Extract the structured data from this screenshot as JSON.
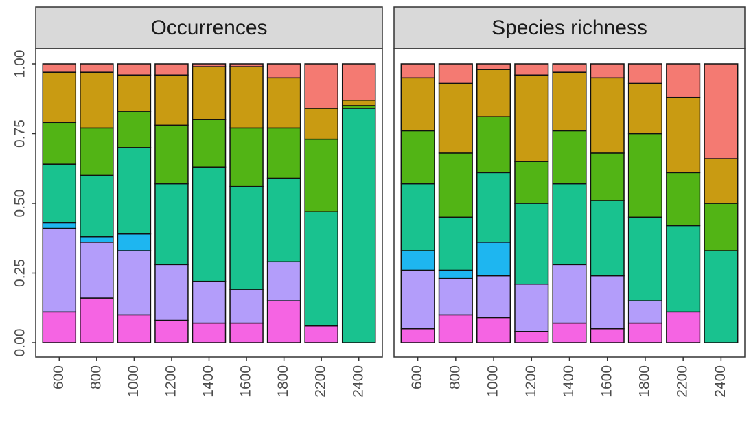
{
  "chart_data": [
    {
      "type": "bar",
      "stacked": true,
      "title": "Occurrences",
      "categories": [
        "600",
        "800",
        "1000",
        "1200",
        "1400",
        "1600",
        "1800",
        "2200",
        "2400"
      ],
      "ylim": [
        0,
        1
      ],
      "yticks": [
        {
          "value": 0,
          "label": "0.00"
        },
        {
          "value": 0.25,
          "label": "0.25"
        },
        {
          "value": 0.5,
          "label": "0.50"
        },
        {
          "value": 0.75,
          "label": "0.75"
        },
        {
          "value": 1,
          "label": "1.00"
        }
      ],
      "series": [
        {
          "color": "#F564E3",
          "values": [
            0.11,
            0.16,
            0.1,
            0.08,
            0.07,
            0.07,
            0.15,
            0.06,
            0
          ]
        },
        {
          "color": "#B39DFA",
          "values": [
            0.3,
            0.2,
            0.23,
            0.2,
            0.15,
            0.12,
            0.14,
            0,
            0
          ]
        },
        {
          "color": "#1EB6F0",
          "values": [
            0.02,
            0.02,
            0.06,
            0,
            0,
            0,
            0,
            0,
            0
          ]
        },
        {
          "color": "#19C28F",
          "values": [
            0.21,
            0.22,
            0.31,
            0.29,
            0.41,
            0.37,
            0.3,
            0.41,
            0.84
          ]
        },
        {
          "color": "#52B415",
          "values": [
            0.15,
            0.17,
            0.13,
            0.21,
            0.17,
            0.21,
            0.18,
            0.26,
            0.01
          ]
        },
        {
          "color": "#C99B12",
          "values": [
            0.18,
            0.2,
            0.13,
            0.18,
            0.19,
            0.22,
            0.18,
            0.11,
            0.02
          ]
        },
        {
          "color": "#F47A72",
          "values": [
            0.03,
            0.03,
            0.04,
            0.04,
            0.01,
            0.01,
            0.05,
            0.16,
            0.13
          ]
        }
      ]
    },
    {
      "type": "bar",
      "stacked": true,
      "title": "Species richness",
      "categories": [
        "600",
        "800",
        "1000",
        "1200",
        "1400",
        "1600",
        "1800",
        "2200",
        "2400"
      ],
      "ylim": [
        0,
        1
      ],
      "series": [
        {
          "color": "#F564E3",
          "values": [
            0.05,
            0.1,
            0.09,
            0.04,
            0.07,
            0.05,
            0.07,
            0.11,
            0
          ]
        },
        {
          "color": "#B39DFA",
          "values": [
            0.21,
            0.13,
            0.15,
            0.17,
            0.21,
            0.19,
            0.08,
            0,
            0
          ]
        },
        {
          "color": "#1EB6F0",
          "values": [
            0.07,
            0.03,
            0.12,
            0,
            0,
            0,
            0,
            0,
            0
          ]
        },
        {
          "color": "#19C28F",
          "values": [
            0.24,
            0.19,
            0.25,
            0.29,
            0.29,
            0.27,
            0.3,
            0.31,
            0.33
          ]
        },
        {
          "color": "#52B415",
          "values": [
            0.19,
            0.23,
            0.2,
            0.15,
            0.19,
            0.17,
            0.3,
            0.19,
            0.17
          ]
        },
        {
          "color": "#C99B12",
          "values": [
            0.19,
            0.25,
            0.17,
            0.31,
            0.21,
            0.27,
            0.18,
            0.27,
            0.16
          ]
        },
        {
          "color": "#F47A72",
          "values": [
            0.05,
            0.07,
            0.02,
            0.04,
            0.03,
            0.05,
            0.07,
            0.12,
            0.34
          ]
        }
      ]
    }
  ]
}
